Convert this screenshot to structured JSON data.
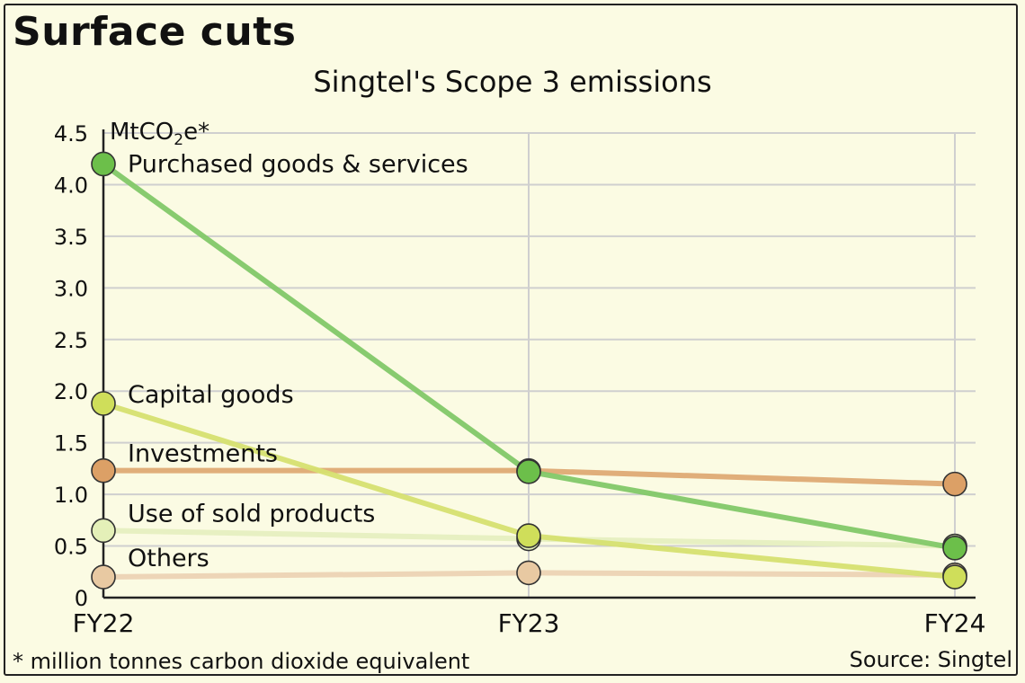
{
  "headline": "Surface cuts",
  "footnote": "* million tonnes carbon dioxide equivalent",
  "source": "Source: Singtel",
  "colors": {
    "background": "#fbfbe3",
    "grid": "#cfcfcf",
    "axis": "#222222"
  },
  "chart_data": {
    "type": "line",
    "title": "Singtel's Scope 3 emissions",
    "ylabel_base": "MtCO",
    "ylabel_sub": "2",
    "ylabel_suffix": "e*",
    "xlabel": "",
    "x": [
      "FY22",
      "FY23",
      "FY24"
    ],
    "ylim": [
      0,
      4.5
    ],
    "yticks": [
      0,
      0.5,
      1.0,
      1.5,
      2.0,
      2.5,
      3.0,
      3.5,
      4.0,
      4.5
    ],
    "ytick_labels": [
      "0",
      "0.5",
      "1.0",
      "1.5",
      "2.0",
      "2.5",
      "3.0",
      "3.5",
      "4.0",
      "4.5"
    ],
    "grid": true,
    "series": [
      {
        "name": "Others",
        "values": [
          0.2,
          0.24,
          0.22
        ],
        "color": "#e8c9a2",
        "line": "#ecd3b4"
      },
      {
        "name": "Use of sold products",
        "values": [
          0.65,
          0.57,
          0.5
        ],
        "color": "#e4f0b8",
        "line": "#e6efc0"
      },
      {
        "name": "Investments",
        "values": [
          1.23,
          1.23,
          1.1
        ],
        "color": "#dca066",
        "line": "#deaa74"
      },
      {
        "name": "Capital goods",
        "values": [
          1.88,
          0.6,
          0.2
        ],
        "color": "#cfde5a",
        "line": "#d6e070"
      },
      {
        "name": "Purchased goods & services",
        "values": [
          4.2,
          1.22,
          0.48
        ],
        "color": "#6cbf4a",
        "line": "#82c868"
      }
    ]
  }
}
